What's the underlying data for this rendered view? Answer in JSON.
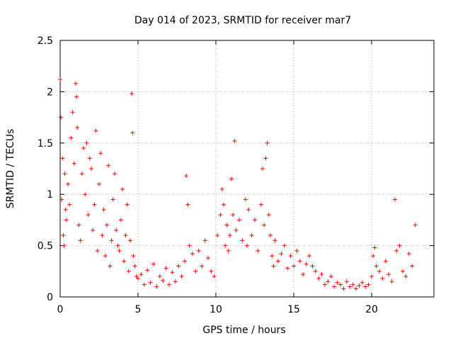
{
  "chart_data": {
    "type": "scatter",
    "title": "Day 014 of 2023, SRMTID for receiver mar7",
    "xlabel": "GPS time / hours",
    "ylabel": "SRMTID / TECUs",
    "xlim": [
      0,
      24
    ],
    "ylim": [
      0,
      2.5
    ],
    "xticks": [
      0,
      5,
      10,
      15,
      20
    ],
    "xtick_labels": [
      "0",
      "5",
      "10",
      "15",
      "20"
    ],
    "yticks": [
      0,
      0.5,
      1,
      1.5,
      2,
      2.5
    ],
    "ytick_labels": [
      "0",
      "0.5",
      "1",
      "1.5",
      "2",
      "2.5"
    ],
    "grid": true,
    "marker": "+",
    "marker_color": "#ff0000",
    "series": [
      {
        "name": "SRMTID",
        "x": [
          0.0,
          0.05,
          0.1,
          0.15,
          0.2,
          0.25,
          0.3,
          0.35,
          0.4,
          0.5,
          0.6,
          0.7,
          0.8,
          0.9,
          1.0,
          1.05,
          1.1,
          1.2,
          1.3,
          1.4,
          1.5,
          1.6,
          1.7,
          1.8,
          1.9,
          2.0,
          2.1,
          2.2,
          2.3,
          2.4,
          2.5,
          2.6,
          2.7,
          2.8,
          2.9,
          3.0,
          3.1,
          3.2,
          3.3,
          3.4,
          3.5,
          3.6,
          3.7,
          3.8,
          3.9,
          4.0,
          4.1,
          4.2,
          4.3,
          4.4,
          4.5,
          4.6,
          4.65,
          4.7,
          4.8,
          4.9,
          5.0,
          5.2,
          5.4,
          5.6,
          5.8,
          6.0,
          6.2,
          6.4,
          6.6,
          6.8,
          7.0,
          7.2,
          7.4,
          7.6,
          7.8,
          8.0,
          8.1,
          8.2,
          8.3,
          8.5,
          8.7,
          8.9,
          9.1,
          9.3,
          9.5,
          9.7,
          9.9,
          10.1,
          10.3,
          10.4,
          10.5,
          10.6,
          10.7,
          10.8,
          10.9,
          11.0,
          11.1,
          11.2,
          11.3,
          11.5,
          11.7,
          11.9,
          12.0,
          12.1,
          12.3,
          12.5,
          12.7,
          12.9,
          13.0,
          13.1,
          13.2,
          13.3,
          13.4,
          13.5,
          13.6,
          13.7,
          13.8,
          14.0,
          14.2,
          14.4,
          14.6,
          14.8,
          15.0,
          15.2,
          15.4,
          15.6,
          15.8,
          16.0,
          16.2,
          16.4,
          16.6,
          16.8,
          17.0,
          17.2,
          17.4,
          17.6,
          17.8,
          18.0,
          18.2,
          18.4,
          18.6,
          18.8,
          19.0,
          19.2,
          19.4,
          19.6,
          19.8,
          20.0,
          20.1,
          20.2,
          20.3,
          20.5,
          20.7,
          20.9,
          21.1,
          21.3,
          21.5,
          21.6,
          21.8,
          22.0,
          22.2,
          22.4,
          22.6,
          22.8
        ],
        "y": [
          2.12,
          1.75,
          0.95,
          1.35,
          0.6,
          0.5,
          1.2,
          0.85,
          0.75,
          1.1,
          0.9,
          1.55,
          1.8,
          1.3,
          2.08,
          1.95,
          1.65,
          0.7,
          0.55,
          1.2,
          1.45,
          1.0,
          1.5,
          0.8,
          1.35,
          1.25,
          0.65,
          0.9,
          1.62,
          0.45,
          1.1,
          1.4,
          0.6,
          0.85,
          0.4,
          0.7,
          1.28,
          0.3,
          0.55,
          0.95,
          1.2,
          0.65,
          0.5,
          0.45,
          0.75,
          1.05,
          0.35,
          0.6,
          0.9,
          0.25,
          0.55,
          1.98,
          1.6,
          0.4,
          0.3,
          0.2,
          0.18,
          0.22,
          0.12,
          0.26,
          0.14,
          0.32,
          0.1,
          0.2,
          0.16,
          0.28,
          0.12,
          0.24,
          0.15,
          0.3,
          0.2,
          0.35,
          1.18,
          0.9,
          0.5,
          0.42,
          0.25,
          0.45,
          0.3,
          0.55,
          0.38,
          0.25,
          0.2,
          0.6,
          0.8,
          1.05,
          0.9,
          0.5,
          0.7,
          0.45,
          0.6,
          1.15,
          0.8,
          1.52,
          0.65,
          0.75,
          0.55,
          0.95,
          0.5,
          0.85,
          0.6,
          0.75,
          0.45,
          0.9,
          1.25,
          0.7,
          1.35,
          1.5,
          0.8,
          0.6,
          0.4,
          0.3,
          0.55,
          0.35,
          0.42,
          0.5,
          0.28,
          0.4,
          0.3,
          0.45,
          0.35,
          0.22,
          0.32,
          0.4,
          0.3,
          0.25,
          0.18,
          0.22,
          0.12,
          0.15,
          0.2,
          0.1,
          0.14,
          0.12,
          0.08,
          0.15,
          0.1,
          0.12,
          0.08,
          0.11,
          0.14,
          0.1,
          0.12,
          0.2,
          0.4,
          0.48,
          0.3,
          0.25,
          0.18,
          0.35,
          0.22,
          0.15,
          0.95,
          0.45,
          0.5,
          0.25,
          0.2,
          0.42,
          0.3,
          0.7
        ]
      }
    ]
  }
}
